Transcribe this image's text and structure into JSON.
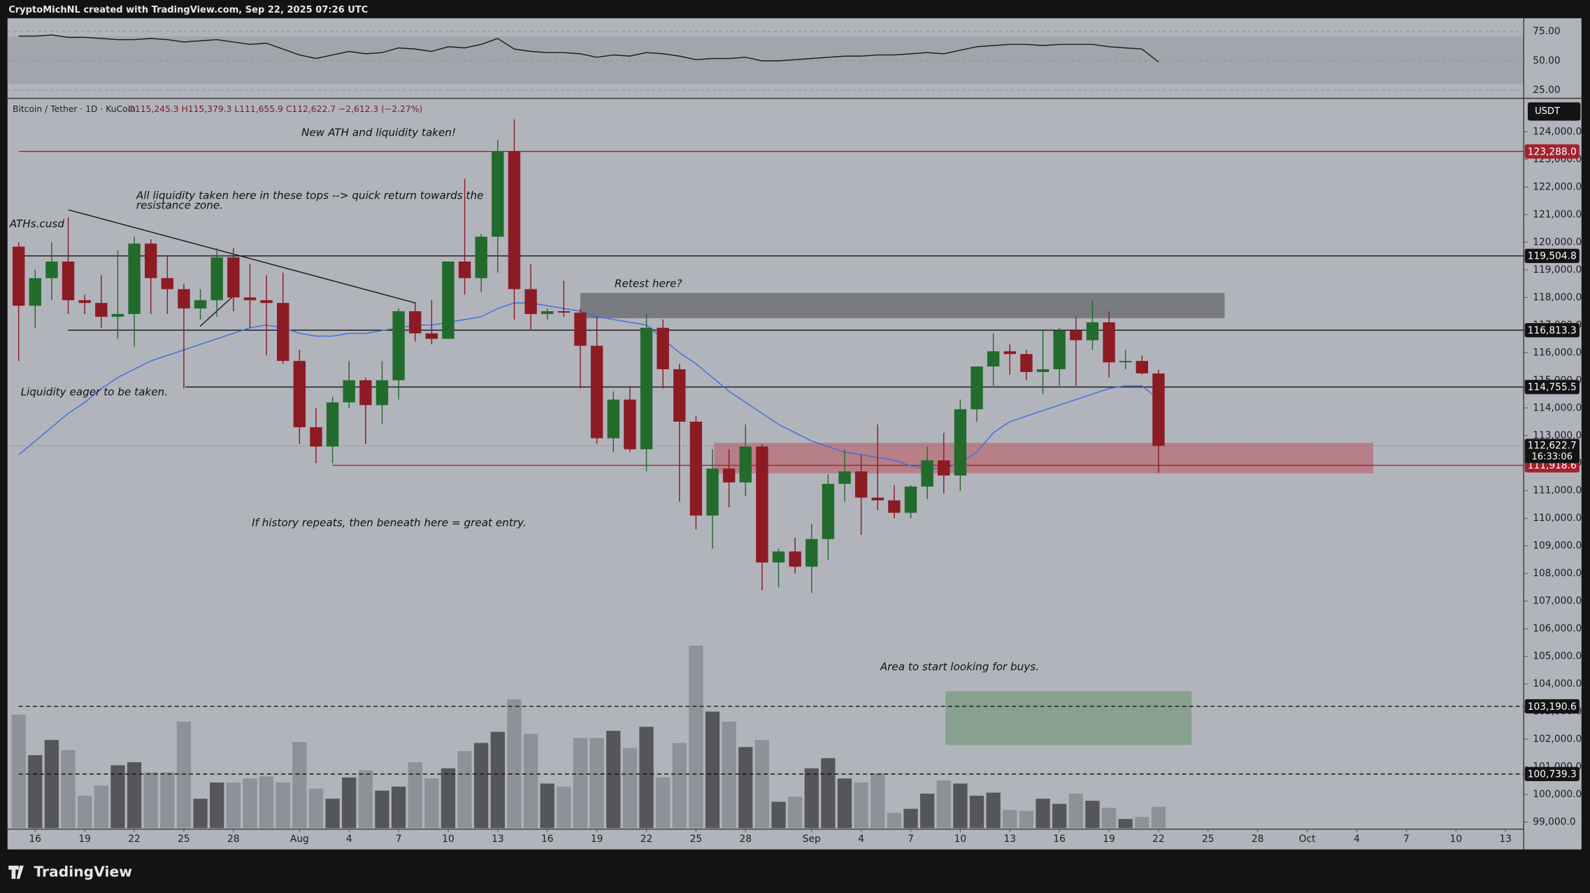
{
  "chart_data": {
    "type": "candlestick",
    "header": "CryptoMichNL created with TradingView.com, Sep 22, 2025 07:26 UTC",
    "symbol": "Bitcoin / Tether · 1D · KuCoin",
    "ohlc_legend": "O115,245.3 H115,379.3 L111,655.9 C112,622.7 −2,612.3 (−2.27%)",
    "currency": "USDT",
    "brand": "TradingView",
    "up_color": "#226b2c",
    "down_color": "#8c1b24",
    "open": [
      119840,
      117700,
      118700,
      119300,
      117900,
      117800,
      117300,
      117400,
      119950,
      118700,
      118300,
      117600,
      117900,
      119450,
      118000,
      117900,
      117800,
      115700,
      113300,
      112600,
      114200,
      115000,
      114100,
      115000,
      117500,
      116700,
      116500,
      119300,
      118700,
      120200,
      123300,
      118300,
      117400,
      117500,
      117450,
      116250,
      112900,
      114300,
      112500,
      116900,
      115400,
      113500,
      110100,
      111800,
      111300,
      112600,
      108400,
      108800,
      108250,
      109250,
      111250,
      111700,
      110750,
      110650,
      110200,
      111150,
      112100,
      111550,
      113950,
      115500,
      116050,
      115950,
      115300,
      115400,
      116800,
      116450,
      117100,
      115650,
      115700,
      115245.3
    ],
    "high": [
      120000,
      119000,
      120000,
      120900,
      118100,
      118800,
      119700,
      120200,
      120100,
      119500,
      118500,
      118300,
      119800,
      119800,
      119200,
      118800,
      118900,
      116100,
      114000,
      114400,
      115700,
      115100,
      115700,
      117600,
      117800,
      117900,
      119300,
      122300,
      120300,
      123700,
      124450,
      119200,
      117600,
      118600,
      117600,
      117300,
      114600,
      114800,
      117400,
      117200,
      115600,
      113700,
      112500,
      112500,
      113400,
      112700,
      108900,
      109300,
      109800,
      111600,
      112500,
      112300,
      113400,
      111200,
      111200,
      112600,
      113100,
      114300,
      115500,
      116700,
      116300,
      116100,
      116800,
      116900,
      117300,
      117900,
      117500,
      116100,
      115900,
      115379.3
    ],
    "low": [
      115700,
      116900,
      117900,
      117400,
      117400,
      116900,
      116500,
      116200,
      117400,
      117400,
      114700,
      117200,
      117300,
      117500,
      116900,
      115900,
      115600,
      112700,
      112000,
      112000,
      114000,
      112700,
      113400,
      114300,
      116400,
      116300,
      116500,
      118100,
      118200,
      118900,
      117200,
      116800,
      117200,
      117300,
      114700,
      112700,
      112400,
      112400,
      111700,
      114700,
      110600,
      109600,
      108900,
      110400,
      110800,
      107400,
      107500,
      108000,
      107300,
      108500,
      110600,
      109400,
      110300,
      110000,
      110000,
      110700,
      110900,
      111000,
      113500,
      114800,
      115200,
      115000,
      114500,
      114800,
      114800,
      116100,
      115100,
      115400,
      115200,
      111655.9
    ],
    "close": [
      117700,
      118700,
      119300,
      117900,
      117800,
      117300,
      117400,
      119950,
      118700,
      118300,
      117600,
      117900,
      119450,
      118000,
      117900,
      117800,
      115700,
      113300,
      112600,
      114200,
      115000,
      114100,
      115000,
      117500,
      116700,
      116500,
      119300,
      118700,
      120200,
      123300,
      118300,
      117400,
      117500,
      117450,
      116250,
      112900,
      114300,
      112500,
      116900,
      115400,
      113500,
      110100,
      111800,
      111300,
      112600,
      108400,
      108800,
      108250,
      109250,
      111250,
      111700,
      110750,
      110650,
      110200,
      111150,
      112100,
      111550,
      113950,
      115500,
      116050,
      115950,
      115300,
      115400,
      116800,
      116450,
      117100,
      115650,
      115700,
      115250,
      112622.7
    ],
    "volume": [
      112,
      72,
      87,
      77,
      32,
      42,
      62,
      65,
      55,
      55,
      105,
      29,
      45,
      45,
      49,
      51,
      45,
      85,
      39,
      29,
      50,
      57,
      37,
      41,
      65,
      49,
      59,
      76,
      84,
      95,
      127,
      93,
      44,
      41,
      89,
      89,
      96,
      79,
      100,
      50,
      84,
      180,
      115,
      105,
      80,
      87,
      26,
      31,
      59,
      69,
      49,
      45,
      54,
      15,
      19,
      34,
      47,
      44,
      32,
      35,
      18,
      17,
      29,
      24,
      34,
      27,
      20,
      9,
      11,
      21
    ],
    "ma": [
      112300,
      112800,
      113300,
      113800,
      114200,
      114700,
      115100,
      115400,
      115700,
      115900,
      116100,
      116300,
      116500,
      116700,
      116900,
      117000,
      116900,
      116700,
      116600,
      116600,
      116700,
      116700,
      116800,
      116900,
      117000,
      117000,
      117100,
      117200,
      117300,
      117600,
      117800,
      117800,
      117700,
      117600,
      117500,
      117300,
      117200,
      117100,
      117000,
      116500,
      116000,
      115600,
      115100,
      114600,
      114200,
      113800,
      113400,
      113100,
      112800,
      112600,
      112400,
      112300,
      112200,
      112100,
      111900,
      111800,
      111800,
      112000,
      112400,
      113100,
      113500,
      113700,
      113900,
      114100,
      114300,
      114500,
      114700,
      114800,
      114800,
      114300
    ],
    "ma_color": "#3d6fe0",
    "rsi": [
      71,
      71,
      72,
      70,
      70,
      69,
      68,
      68,
      69,
      68,
      66,
      67,
      68,
      66,
      64,
      65,
      60,
      55,
      52,
      55,
      58,
      56,
      57,
      61,
      60,
      58,
      62,
      61,
      64,
      69,
      60,
      58,
      57,
      57,
      56,
      53,
      55,
      54,
      57,
      56,
      54,
      51,
      52,
      52,
      53,
      50,
      50,
      51,
      52,
      53,
      54,
      54,
      55,
      55,
      56,
      57,
      56,
      59,
      62,
      63,
      64,
      64,
      63,
      64,
      64,
      64,
      62,
      61,
      60,
      49
    ],
    "rsi_ylim": [
      25,
      75
    ],
    "rsi_ticks": [
      {
        "value": 75,
        "label": "75.00"
      },
      {
        "value": 50,
        "label": "50.00"
      },
      {
        "value": 25,
        "label": "25.00"
      }
    ],
    "ylim": [
      98750,
      124750
    ],
    "yticks": [
      {
        "value": 124000,
        "label": "124,000.0"
      },
      {
        "value": 123000,
        "label": "123,000.0"
      },
      {
        "value": 122000,
        "label": "122,000.0"
      },
      {
        "value": 121000,
        "label": "121,000.0"
      },
      {
        "value": 120000,
        "label": "120,000.0"
      },
      {
        "value": 119000,
        "label": "119,000.0"
      },
      {
        "value": 118000,
        "label": "118,000.0"
      },
      {
        "value": 117000,
        "label": "117,000.0"
      },
      {
        "value": 116000,
        "label": "116,000.0"
      },
      {
        "value": 115000,
        "label": "115,000.0"
      },
      {
        "value": 114000,
        "label": "114,000.0"
      },
      {
        "value": 113000,
        "label": "113,000.0"
      },
      {
        "value": 112000,
        "label": "112,000.0"
      },
      {
        "value": 111000,
        "label": "111,000.0"
      },
      {
        "value": 110000,
        "label": "110,000.0"
      },
      {
        "value": 109000,
        "label": "109,000.0"
      },
      {
        "value": 108000,
        "label": "108,000.0"
      },
      {
        "value": 107000,
        "label": "107,000.0"
      },
      {
        "value": 106000,
        "label": "106,000.0"
      },
      {
        "value": 105000,
        "label": "105,000.0"
      },
      {
        "value": 104000,
        "label": "104,000.0"
      },
      {
        "value": 103000,
        "label": "103,000.0"
      },
      {
        "value": 102000,
        "label": "102,000.0"
      },
      {
        "value": 101000,
        "label": "101,000.0"
      },
      {
        "value": 100000,
        "label": "100,000.0"
      },
      {
        "value": 99000,
        "label": "99,000.0"
      }
    ],
    "xticks": [
      {
        "value": 1,
        "label": "16"
      },
      {
        "value": 4,
        "label": "19"
      },
      {
        "value": 7,
        "label": "22"
      },
      {
        "value": 10,
        "label": "25"
      },
      {
        "value": 13,
        "label": "28"
      },
      {
        "value": 17,
        "label": "Aug"
      },
      {
        "value": 20,
        "label": "4"
      },
      {
        "value": 23,
        "label": "7"
      },
      {
        "value": 26,
        "label": "10"
      },
      {
        "value": 29,
        "label": "13"
      },
      {
        "value": 32,
        "label": "16"
      },
      {
        "value": 35,
        "label": "19"
      },
      {
        "value": 38,
        "label": "22"
      },
      {
        "value": 41,
        "label": "25"
      },
      {
        "value": 44,
        "label": "28"
      },
      {
        "value": 48,
        "label": "Sep"
      },
      {
        "value": 51,
        "label": "4"
      },
      {
        "value": 54,
        "label": "7"
      },
      {
        "value": 57,
        "label": "10"
      },
      {
        "value": 60,
        "label": "13"
      },
      {
        "value": 63,
        "label": "16"
      },
      {
        "value": 66,
        "label": "19"
      },
      {
        "value": 69,
        "label": "22"
      },
      {
        "value": 72,
        "label": "25"
      },
      {
        "value": 75,
        "label": "28"
      },
      {
        "value": 78,
        "label": "Oct"
      },
      {
        "value": 81,
        "label": "4"
      },
      {
        "value": 84,
        "label": "7"
      },
      {
        "value": 87,
        "label": "10"
      },
      {
        "value": 90,
        "label": "13"
      }
    ],
    "levels": [
      {
        "value": 123288.0,
        "label": "123,288.0",
        "color": "#a3222d",
        "from": 0,
        "style": "solid"
      },
      {
        "value": 119504.8,
        "label": "119,504.8",
        "color": "#131313",
        "from": 0,
        "style": "solid"
      },
      {
        "value": 116813.3,
        "label": "116,813.3",
        "color": "#131313",
        "from": 3.0,
        "style": "solid"
      },
      {
        "value": 114755.5,
        "label": "114,755.5",
        "color": "#131313",
        "from": 10.1,
        "style": "solid"
      },
      {
        "value": 111918.6,
        "label": "111,918.6",
        "color": "#a3222d",
        "from": 19.0,
        "style": "solid"
      },
      {
        "value": 103190.6,
        "label": "103,190.6",
        "color": "#131313",
        "from": 0,
        "style": "dashed"
      },
      {
        "value": 100739.3,
        "label": "100,739.3",
        "color": "#131313",
        "from": 0,
        "style": "dashed"
      }
    ],
    "last_price": {
      "value": 112622.7,
      "label": "112,622.7",
      "countdown": "16:33:06",
      "color": "#a3222d"
    },
    "zones": [
      {
        "from": 34.0,
        "to": 73.0,
        "low": 117247,
        "high": 118165,
        "color": "#6f7177"
      },
      {
        "from": 42.1,
        "to": 82.0,
        "low": 111630,
        "high": 112733,
        "color": "#b7757f"
      },
      {
        "from": 56.1,
        "to": 71.0,
        "low": 101790,
        "high": 103740,
        "color": "#7f9e86"
      }
    ],
    "annotations": [
      "New ATH and liquidity taken!",
      "All liquidity taken here in these tops --> quick return towards the",
      "resistance zone.",
      "ATHs.cusd",
      "Retest here?",
      "Liquidity eager to be taken.",
      "If history repeats, then beneath here = great entry.",
      "Area to start looking for buys."
    ]
  }
}
